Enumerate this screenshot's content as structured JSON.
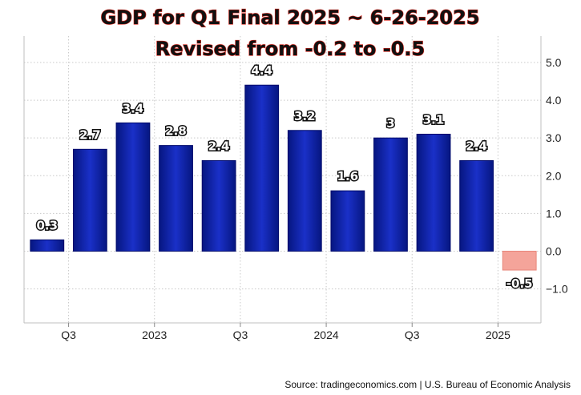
{
  "chart_data": {
    "type": "bar",
    "title": "GDP for Q1 Final 2025 ~ 6-26-2025",
    "subtitle": "Revised from -0.2 to -0.5",
    "values": [
      0.3,
      2.7,
      3.4,
      2.8,
      2.4,
      4.4,
      3.2,
      1.6,
      3,
      3.1,
      2.4,
      -0.5
    ],
    "value_labels": [
      "0.3",
      "2.7",
      "3.4",
      "2.8",
      "2.4",
      "4.4",
      "3.2",
      "1.6",
      "3",
      "3.1",
      "2.4",
      "-0.5"
    ],
    "x_tick_labels": [
      {
        "label": "Q3",
        "at_bar": 1
      },
      {
        "label": "2023",
        "at_bar": 3
      },
      {
        "label": "Q3",
        "at_bar": 5
      },
      {
        "label": "2024",
        "at_bar": 7
      },
      {
        "label": "Q3",
        "at_bar": 9
      },
      {
        "label": "2025",
        "at_bar": 11
      }
    ],
    "y_ticks": [
      5.0,
      4.0,
      3.0,
      2.0,
      1.0,
      0.0,
      -1.0
    ],
    "y_tick_labels": [
      "5.0",
      "4.0",
      "3.0",
      "2.0",
      "1.0",
      "0.0",
      "−1.0"
    ],
    "ylim": [
      -1.9,
      5.7
    ],
    "grid": true,
    "y_axis_side": "right",
    "colors": {
      "positive_bar": "#0b1fa6",
      "positive_bar_edge": "#000a6b",
      "negative_bar": "#f4a49a",
      "negative_bar_edge": "#e8867a",
      "grid": "#c8c8c8"
    }
  },
  "source": "Source: tradingeconomics.com | U.S. Bureau of Economic Analysis"
}
